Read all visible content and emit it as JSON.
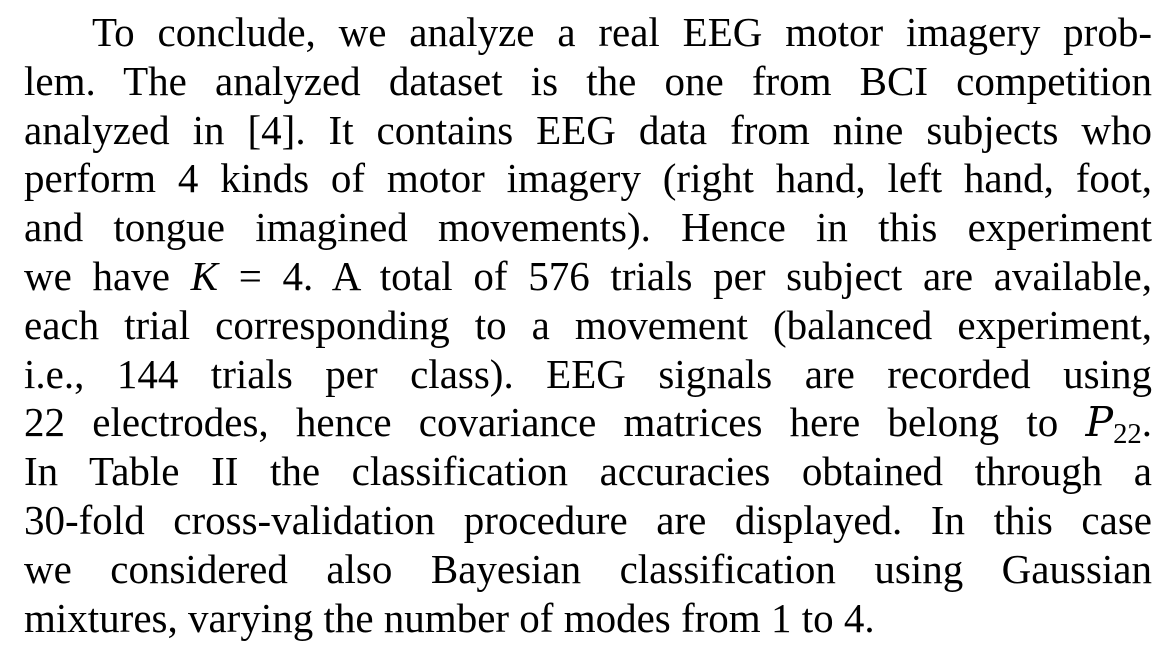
{
  "paragraph": {
    "lines": [
      "To conclude, we analyze a real EEG motor imagery prob-",
      "lem. The analyzed dataset is the one from BCI competition",
      "analyzed in [4]. It contains EEG data from nine subjects who",
      "perform 4 kinds of motor imagery (right hand, left hand, foot,",
      "and tongue imagined movements). Hence in this experiment",
      {
        "pre": "we have ",
        "var": "K",
        "eq": " = 4",
        "post": ". A total of 576 trials per subject are available,"
      },
      "each trial corresponding to a movement (balanced experiment,",
      "i.e., 144 trials per class). EEG signals are recorded using",
      {
        "pre": "22 electrodes, hence covariance matrices here belong to ",
        "symbol": "P",
        "sub": "22",
        "post": "."
      },
      "In Table II the classification accuracies obtained through a",
      "30-fold cross-validation procedure are displayed. In this case",
      "we considered also Bayesian classification using Gaussian",
      "mixtures, varying the number of modes from 1 to 4."
    ]
  }
}
